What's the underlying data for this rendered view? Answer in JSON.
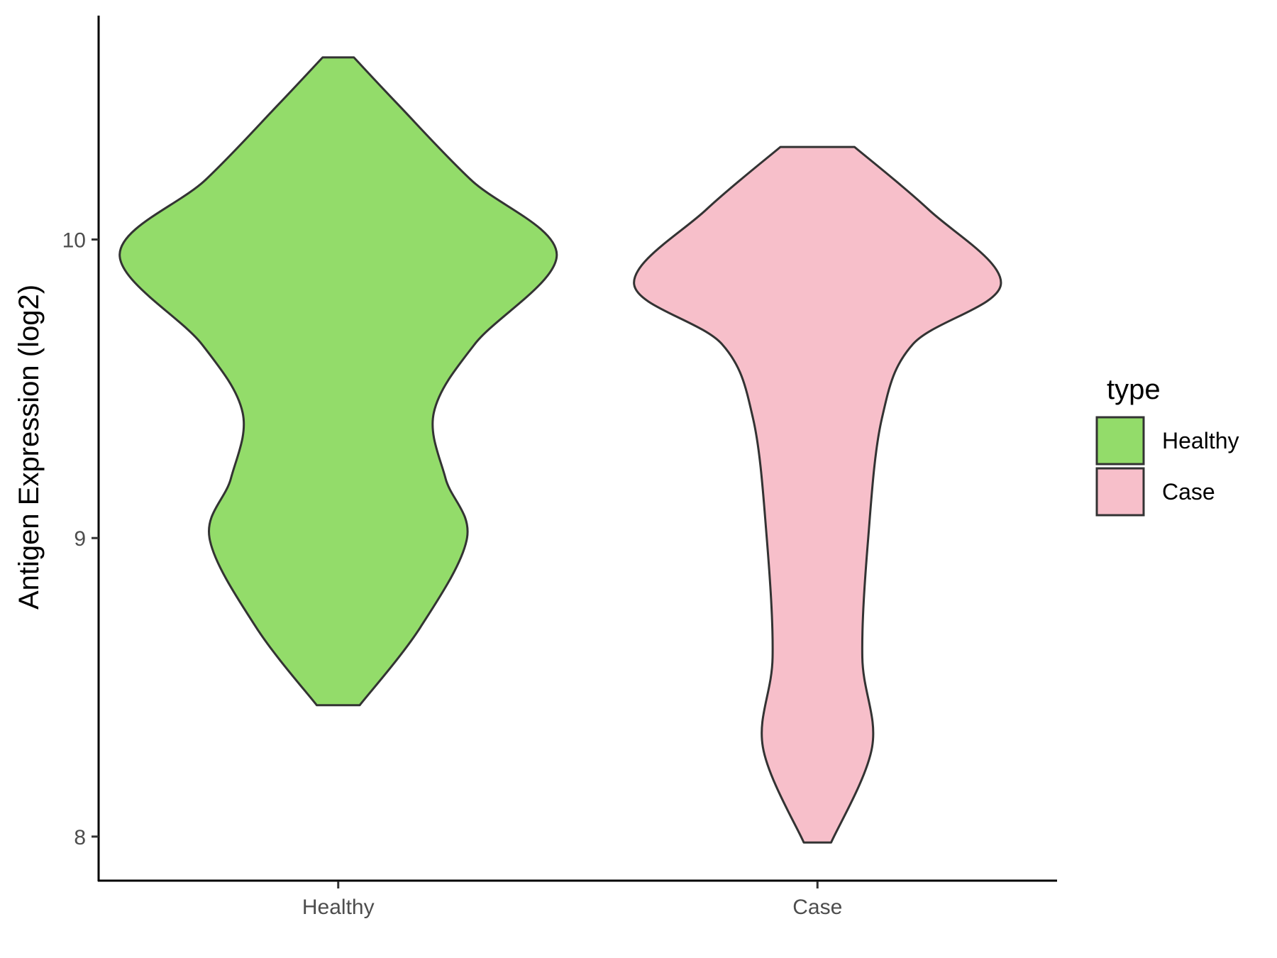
{
  "chart_data": {
    "type": "violin",
    "ylabel": "Antigen Expression (log2)",
    "xlabel": "",
    "ylim": [
      7.85,
      10.75
    ],
    "yticks": [
      8,
      9,
      10
    ],
    "categories": [
      "Healthy",
      "Case"
    ],
    "grid": false,
    "legend": {
      "title": "type",
      "position": "right",
      "entries": [
        "Healthy",
        "Case"
      ]
    },
    "series": [
      {
        "name": "Healthy",
        "color": "#93dc6a",
        "min": 8.44,
        "max": 10.61,
        "density_profile": [
          {
            "y": 8.44,
            "half_width": 0.11
          },
          {
            "y": 8.7,
            "half_width": 0.42
          },
          {
            "y": 9.0,
            "half_width": 0.66
          },
          {
            "y": 9.2,
            "half_width": 0.55
          },
          {
            "y": 9.42,
            "half_width": 0.49
          },
          {
            "y": 9.65,
            "half_width": 0.7
          },
          {
            "y": 9.95,
            "half_width": 1.12
          },
          {
            "y": 10.2,
            "half_width": 0.68
          },
          {
            "y": 10.45,
            "half_width": 0.31
          },
          {
            "y": 10.61,
            "half_width": 0.08
          }
        ]
      },
      {
        "name": "Case",
        "color": "#f7bfca",
        "min": 7.98,
        "max": 10.31,
        "density_profile": [
          {
            "y": 7.98,
            "half_width": 0.07
          },
          {
            "y": 8.3,
            "half_width": 0.28
          },
          {
            "y": 8.6,
            "half_width": 0.23
          },
          {
            "y": 9.0,
            "half_width": 0.26
          },
          {
            "y": 9.4,
            "half_width": 0.33
          },
          {
            "y": 9.65,
            "half_width": 0.49
          },
          {
            "y": 9.85,
            "half_width": 0.94
          },
          {
            "y": 10.1,
            "half_width": 0.57
          },
          {
            "y": 10.31,
            "half_width": 0.19
          }
        ]
      }
    ]
  }
}
